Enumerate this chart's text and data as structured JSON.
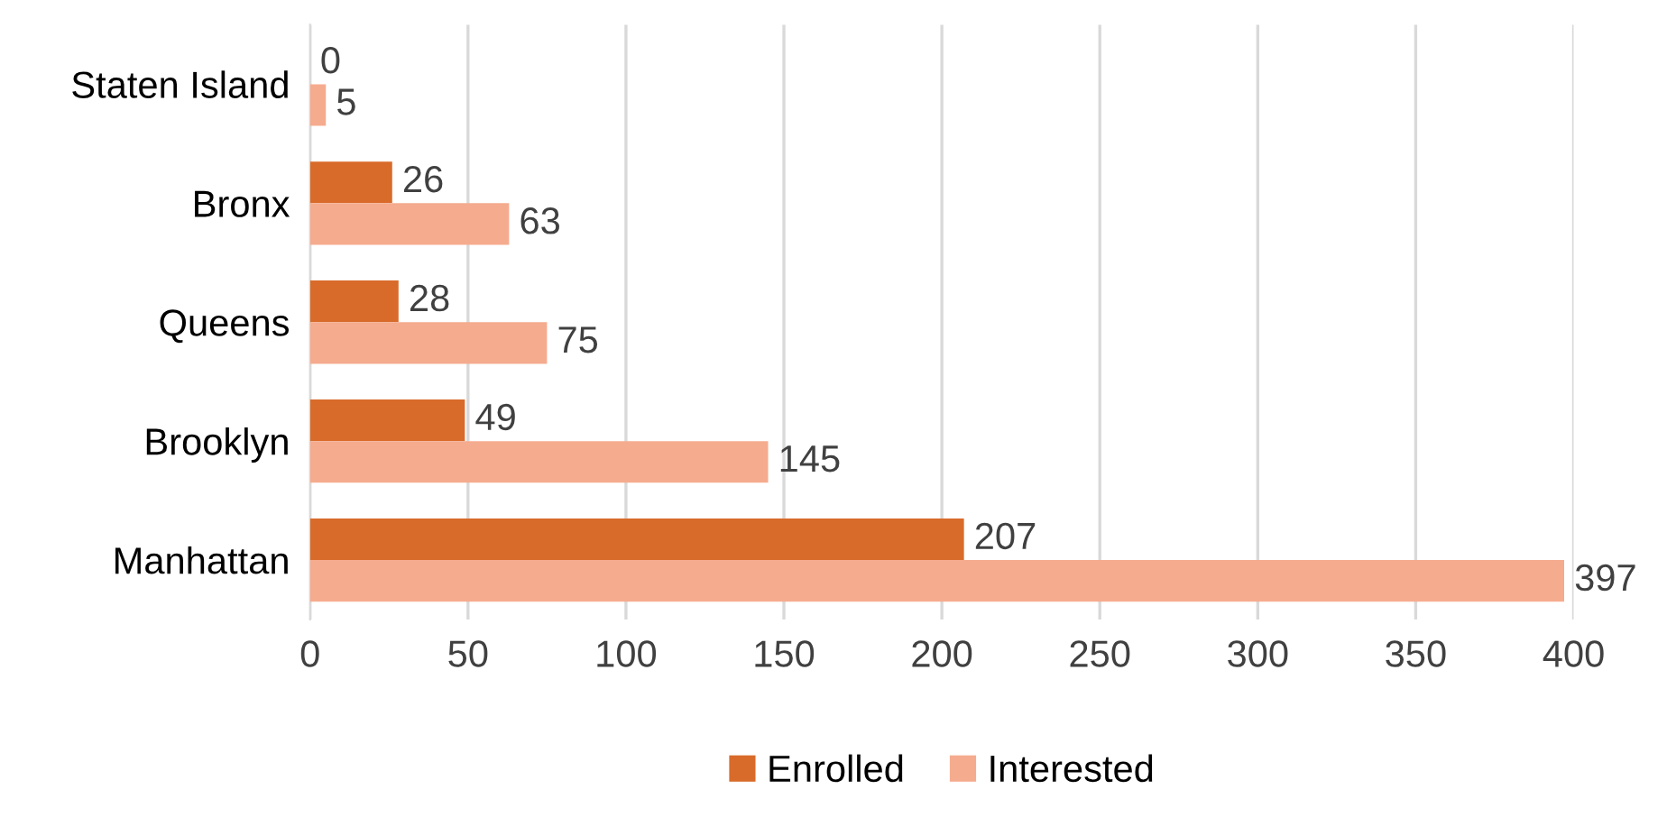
{
  "chart_data": {
    "type": "bar",
    "orientation": "horizontal",
    "categories": [
      "Staten Island",
      "Bronx",
      "Queens",
      "Brooklyn",
      "Manhattan"
    ],
    "series": [
      {
        "name": "Enrolled",
        "color": "#d86b2a",
        "values": [
          0,
          26,
          28,
          49,
          207
        ]
      },
      {
        "name": "Interested",
        "color": "#f5ab8e",
        "values": [
          5,
          63,
          75,
          145,
          397
        ]
      }
    ],
    "xlim": [
      0,
      400
    ],
    "xticks": [
      0,
      50,
      100,
      150,
      200,
      250,
      300,
      350,
      400
    ],
    "grid": "x",
    "legend": "bottom",
    "data_labels": true
  }
}
